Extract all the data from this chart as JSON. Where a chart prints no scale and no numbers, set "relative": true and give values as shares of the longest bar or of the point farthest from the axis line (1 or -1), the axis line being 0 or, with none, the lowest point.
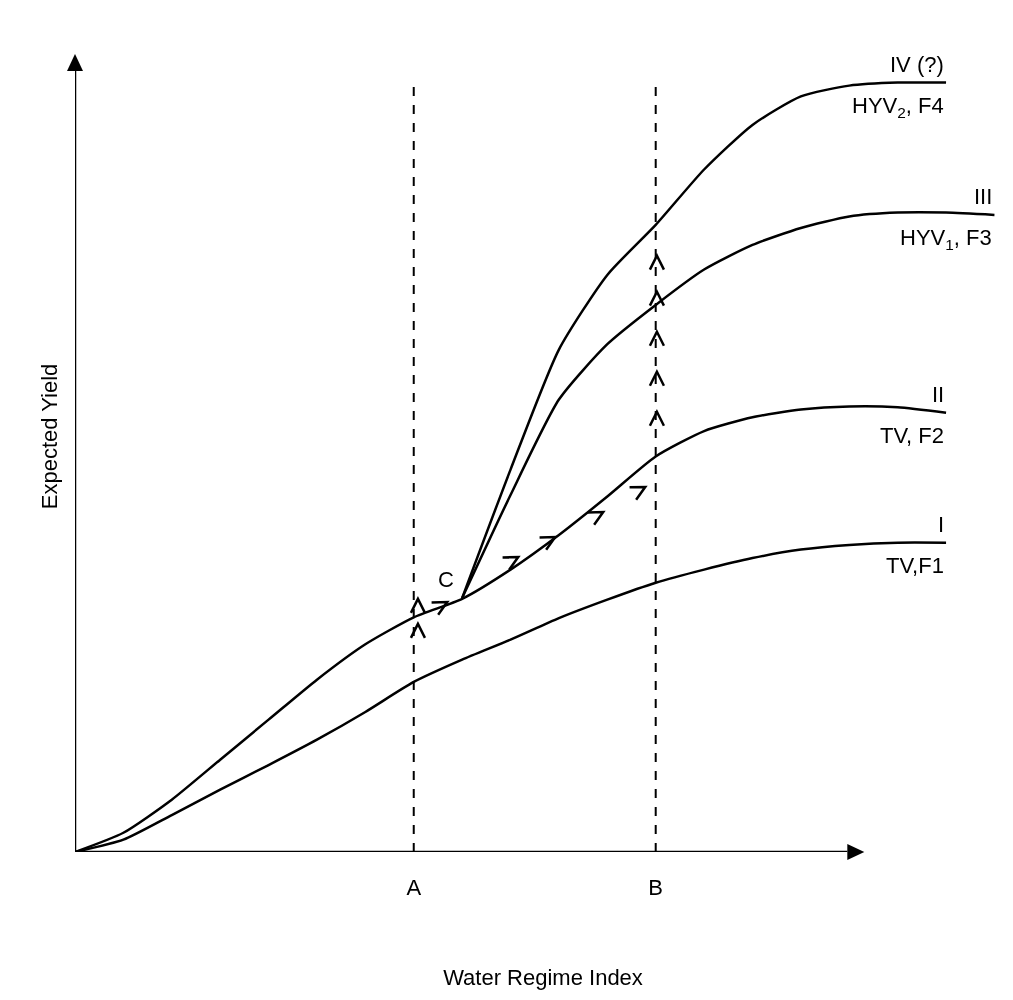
{
  "chart_data": {
    "type": "line",
    "relative": true,
    "xlabel": "Water Regime Index",
    "ylabel": "Expected Yield",
    "grid": false,
    "legend": false,
    "marker": "none",
    "line_style": "solid",
    "categories": [
      null,
      null,
      null,
      null,
      null,
      null,
      null,
      "A",
      null,
      null,
      null,
      null,
      "B",
      null,
      null,
      null,
      null,
      null,
      null,
      null
    ],
    "series": [
      {
        "name": "I",
        "color": "#000000",
        "values": [
          0,
          0.016,
          0.048,
          0.081,
          0.113,
          0.146,
          0.182,
          0.221,
          0.25,
          0.276,
          0.304,
          0.328,
          0.35,
          0.367,
          0.382,
          0.393,
          0.399,
          0.402,
          0.402,
          null
        ]
      },
      {
        "name": "II",
        "color": "#000000",
        "values": [
          0,
          0.025,
          0.068,
          0.12,
          0.172,
          0.224,
          0.27,
          0.305,
          0.329,
          0.367,
          0.412,
          0.462,
          0.514,
          0.547,
          0.565,
          0.575,
          0.579,
          0.578,
          0.571,
          null
        ]
      },
      {
        "name": "III",
        "color": "#000000",
        "values": [
          null,
          null,
          null,
          null,
          null,
          null,
          null,
          null,
          0.33,
          0.464,
          0.588,
          0.66,
          0.711,
          0.757,
          0.789,
          0.811,
          0.826,
          0.831,
          0.831,
          0.828
        ]
      },
      {
        "name": "IV (?)",
        "color": "#000000",
        "values": [
          null,
          null,
          null,
          null,
          null,
          null,
          null,
          null,
          0.33,
          0.497,
          0.653,
          0.75,
          0.815,
          0.887,
          0.945,
          0.982,
          0.996,
          1,
          1,
          null
        ]
      }
    ],
    "ref_lines": [
      {
        "axis": "x",
        "value": "A",
        "line_style": "dashed",
        "color": "#000000"
      },
      {
        "axis": "x",
        "value": "B",
        "line_style": "dashed",
        "color": "#000000"
      }
    ],
    "annotations": [
      {
        "text": "TV,F1",
        "y": 0.402
      },
      {
        "text": "TV, F2",
        "y": 0.571
      },
      {
        "text": "HYV$_{1}$, F3",
        "y": 0.828
      },
      {
        "text": "HYV$_{2}$, F4",
        "y": 1
      },
      "C"
    ]
  }
}
